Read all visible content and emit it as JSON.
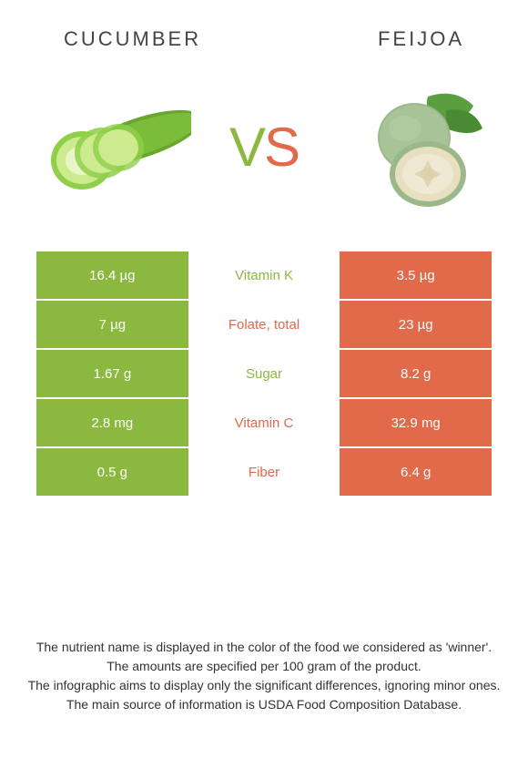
{
  "header": {
    "left_title": "Cucumber",
    "right_title": "Feijoa"
  },
  "vs": {
    "v": "V",
    "s": "S"
  },
  "colors": {
    "left": "#8bb83f",
    "right": "#e06a4a",
    "left_text": "#8bb83f",
    "right_text": "#e06a4a",
    "bg": "#ffffff"
  },
  "rows": [
    {
      "left": "16.4 µg",
      "label": "Vitamin K",
      "right": "3.5 µg",
      "winner": "left"
    },
    {
      "left": "7 µg",
      "label": "Folate, total",
      "right": "23 µg",
      "winner": "right"
    },
    {
      "left": "1.67 g",
      "label": "Sugar",
      "right": "8.2 g",
      "winner": "left"
    },
    {
      "left": "2.8 mg",
      "label": "Vitamin C",
      "right": "32.9 mg",
      "winner": "right"
    },
    {
      "left": "0.5 g",
      "label": "Fiber",
      "right": "6.4 g",
      "winner": "right"
    }
  ],
  "footer": {
    "line1": "The nutrient name is displayed in the color of the food we considered as 'winner'.",
    "line2": "The amounts are specified per 100 gram of the product.",
    "line3": "The infographic aims to display only the significant differences, ignoring minor ones.",
    "line4": "The main source of information is USDA Food Composition Database."
  }
}
